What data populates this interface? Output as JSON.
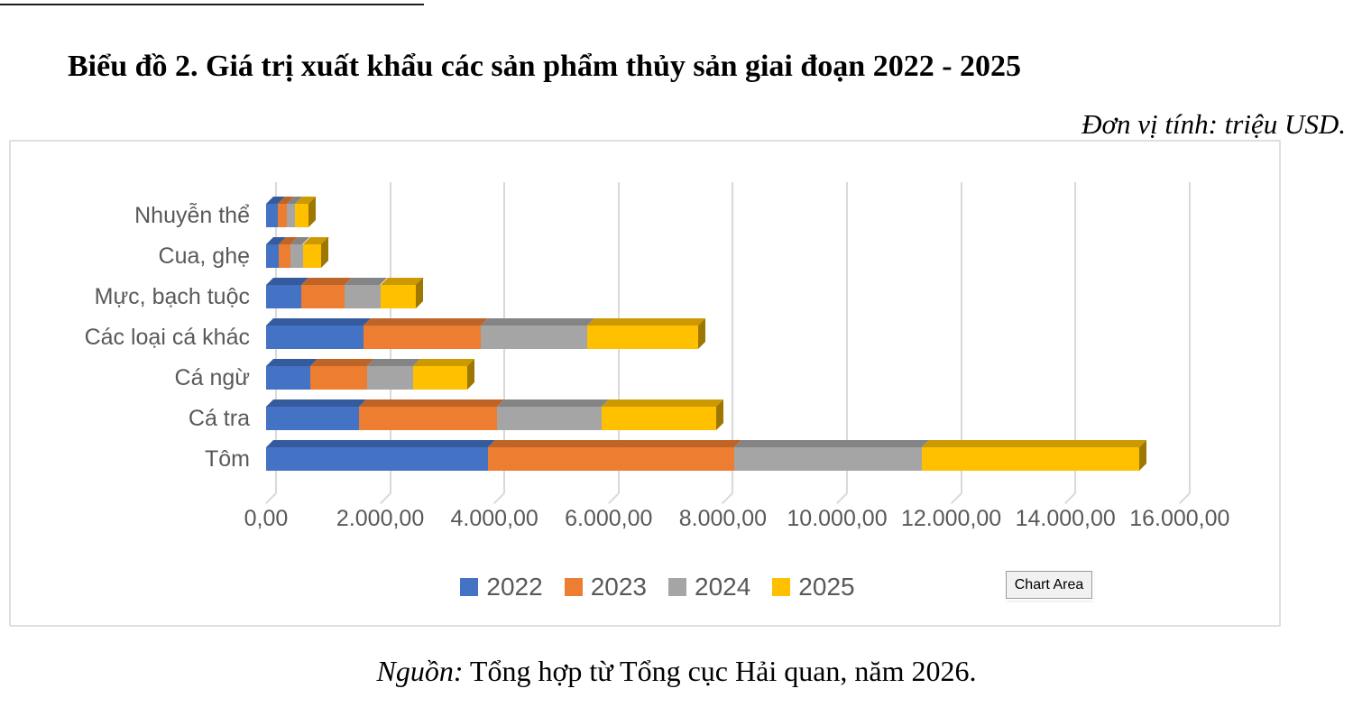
{
  "title": "Biểu đồ 2. Giá trị xuất khẩu các sản phẩm thủy sản giai đoạn 2022 - 2025",
  "unit_note": "Đơn vị tính: triệu USD.",
  "chart_area_tooltip": "Chart Area",
  "source": {
    "prefix": "Nguồn:",
    "rest": " Tổng hợp từ Tổng cục Hải quan, năm 2026."
  },
  "chart_data": {
    "type": "bar",
    "orientation": "horizontal",
    "stacked": true,
    "style": "3d",
    "title": "Giá trị xuất khẩu các sản phẩm thủy sản giai đoạn 2022 - 2025",
    "unit": "triệu USD",
    "categories_top_to_bottom": [
      "Nhuyễn thể",
      "Cua, ghẹ",
      "Mực, bạch tuộc",
      "Các loại cá khác",
      "Cá ngừ",
      "Cá tra",
      "Tôm"
    ],
    "series": [
      {
        "name": "2022",
        "color": "#4472C4",
        "values": [
          200,
          220,
          620,
          1700,
          770,
          1620,
          3880
        ]
      },
      {
        "name": "2023",
        "color": "#ED7D31",
        "values": [
          160,
          210,
          760,
          2060,
          1000,
          2420,
          4320
        ]
      },
      {
        "name": "2024",
        "color": "#A5A5A5",
        "values": [
          150,
          210,
          620,
          1860,
          800,
          1830,
          3290
        ]
      },
      {
        "name": "2025",
        "color": "#FFC000",
        "values": [
          240,
          330,
          630,
          1940,
          950,
          2010,
          3810
        ]
      }
    ],
    "xlabel": "",
    "ylabel": "",
    "axis": {
      "min": 0,
      "max": 16000,
      "tick_step": 2000,
      "tick_labels": [
        "0,00",
        "2.000,00",
        "4.000,00",
        "6.000,00",
        "8.000,00",
        "10.000,00",
        "12.000,00",
        "14.000,00",
        "16.000,00"
      ]
    },
    "grid": true,
    "legend_position": "bottom",
    "legend": [
      "2022",
      "2023",
      "2024",
      "2025"
    ]
  }
}
